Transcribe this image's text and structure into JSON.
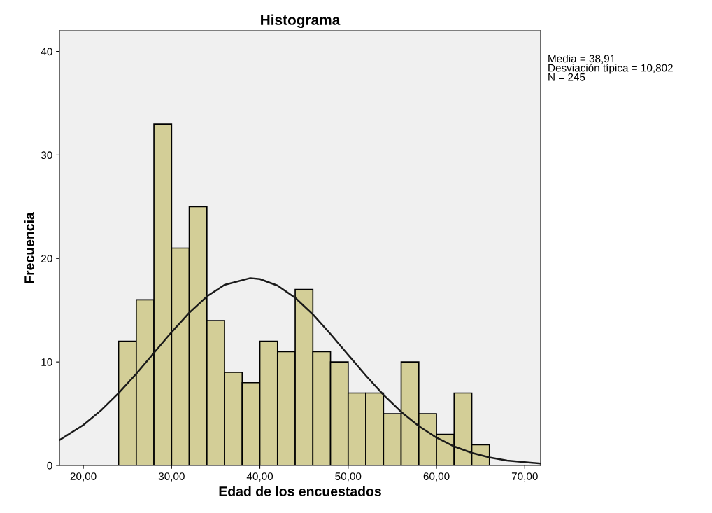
{
  "chart_data": {
    "type": "histogram",
    "title": "Histograma",
    "xlabel": "Edad de los encuestados",
    "ylabel": "Frecuencia",
    "bins": [
      24,
      26,
      28,
      30,
      32,
      34,
      36,
      38,
      40,
      42,
      44,
      46,
      48,
      50,
      52,
      54,
      56,
      58,
      60,
      62,
      64,
      66
    ],
    "values": [
      12,
      16,
      33,
      21,
      25,
      14,
      9,
      8,
      12,
      11,
      17,
      11,
      10,
      7,
      7,
      5,
      10,
      5,
      3,
      7,
      2
    ],
    "color": "#d3ce97",
    "series": [
      {
        "type": "line",
        "color": "#1a1a1a",
        "x": [
          17.3,
          20,
          22,
          24,
          26,
          28,
          30,
          32,
          34,
          36,
          38.91,
          40,
          42,
          44,
          46,
          48,
          50,
          52,
          54,
          56,
          58,
          60,
          62,
          64,
          66,
          68,
          71.8
        ],
        "values": [
          2.45,
          3.91,
          5.32,
          6.99,
          8.86,
          10.87,
          12.88,
          14.75,
          16.33,
          17.45,
          18.1,
          18.01,
          17.38,
          16.2,
          14.6,
          12.7,
          10.69,
          8.69,
          6.82,
          5.18,
          3.8,
          2.69,
          1.84,
          1.22,
          0.78,
          0.48,
          0.18
        ]
      }
    ],
    "xlim": [
      17.3,
      71.8
    ],
    "xticks": [
      {
        "value": 20,
        "label": "20,00"
      },
      {
        "value": 30,
        "label": "30,00"
      },
      {
        "value": 40,
        "label": "40,00"
      },
      {
        "value": 50,
        "label": "50,00"
      },
      {
        "value": 60,
        "label": "60,00"
      },
      {
        "value": 70,
        "label": "70,00"
      }
    ],
    "ylim": [
      0,
      42
    ],
    "yticks": [
      0,
      10,
      20,
      30,
      40
    ],
    "grid": false,
    "annotations": [
      "Media = 38,91\nDesviación típica = 10,802\nN = 245"
    ]
  }
}
